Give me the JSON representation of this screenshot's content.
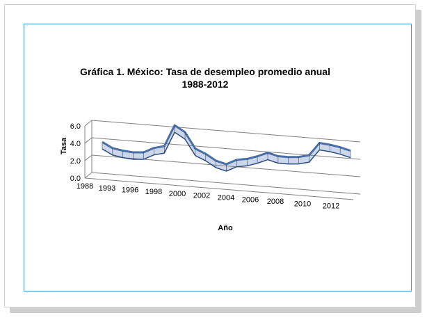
{
  "chart_data": {
    "type": "line",
    "title": "Gráfica 1. México: Tasa de desempleo promedio anual",
    "subtitle": "1988-2012",
    "xlabel": "Año",
    "ylabel": "Tasa",
    "ylim": [
      0,
      6
    ],
    "y_ticks": [
      "0.0",
      "2.0",
      "4.0",
      "6.0"
    ],
    "x_tick_labels": [
      "1988",
      "1993",
      "1996",
      "1998",
      "2000",
      "2002",
      "2004",
      "2006",
      "2008",
      "2010",
      "2012"
    ],
    "grid": true,
    "legend": "none",
    "x": [
      1988,
      1989,
      1990,
      1991,
      1992,
      1993,
      1994,
      1995,
      1996,
      1997,
      1998,
      1999,
      2000,
      2001,
      2002,
      2003,
      2004,
      2005,
      2006,
      2007,
      2008,
      2009,
      2010,
      2011,
      2012
    ],
    "series": [
      {
        "values": [
          3.6,
          3.0,
          2.8,
          2.7,
          2.8,
          3.4,
          3.7,
          6.2,
          5.5,
          3.7,
          3.2,
          2.5,
          2.2,
          2.8,
          3.0,
          3.4,
          3.9,
          3.6,
          3.6,
          3.7,
          4.0,
          5.5,
          5.4,
          5.2,
          4.9
        ],
        "color": "#4a6fa5"
      }
    ]
  }
}
